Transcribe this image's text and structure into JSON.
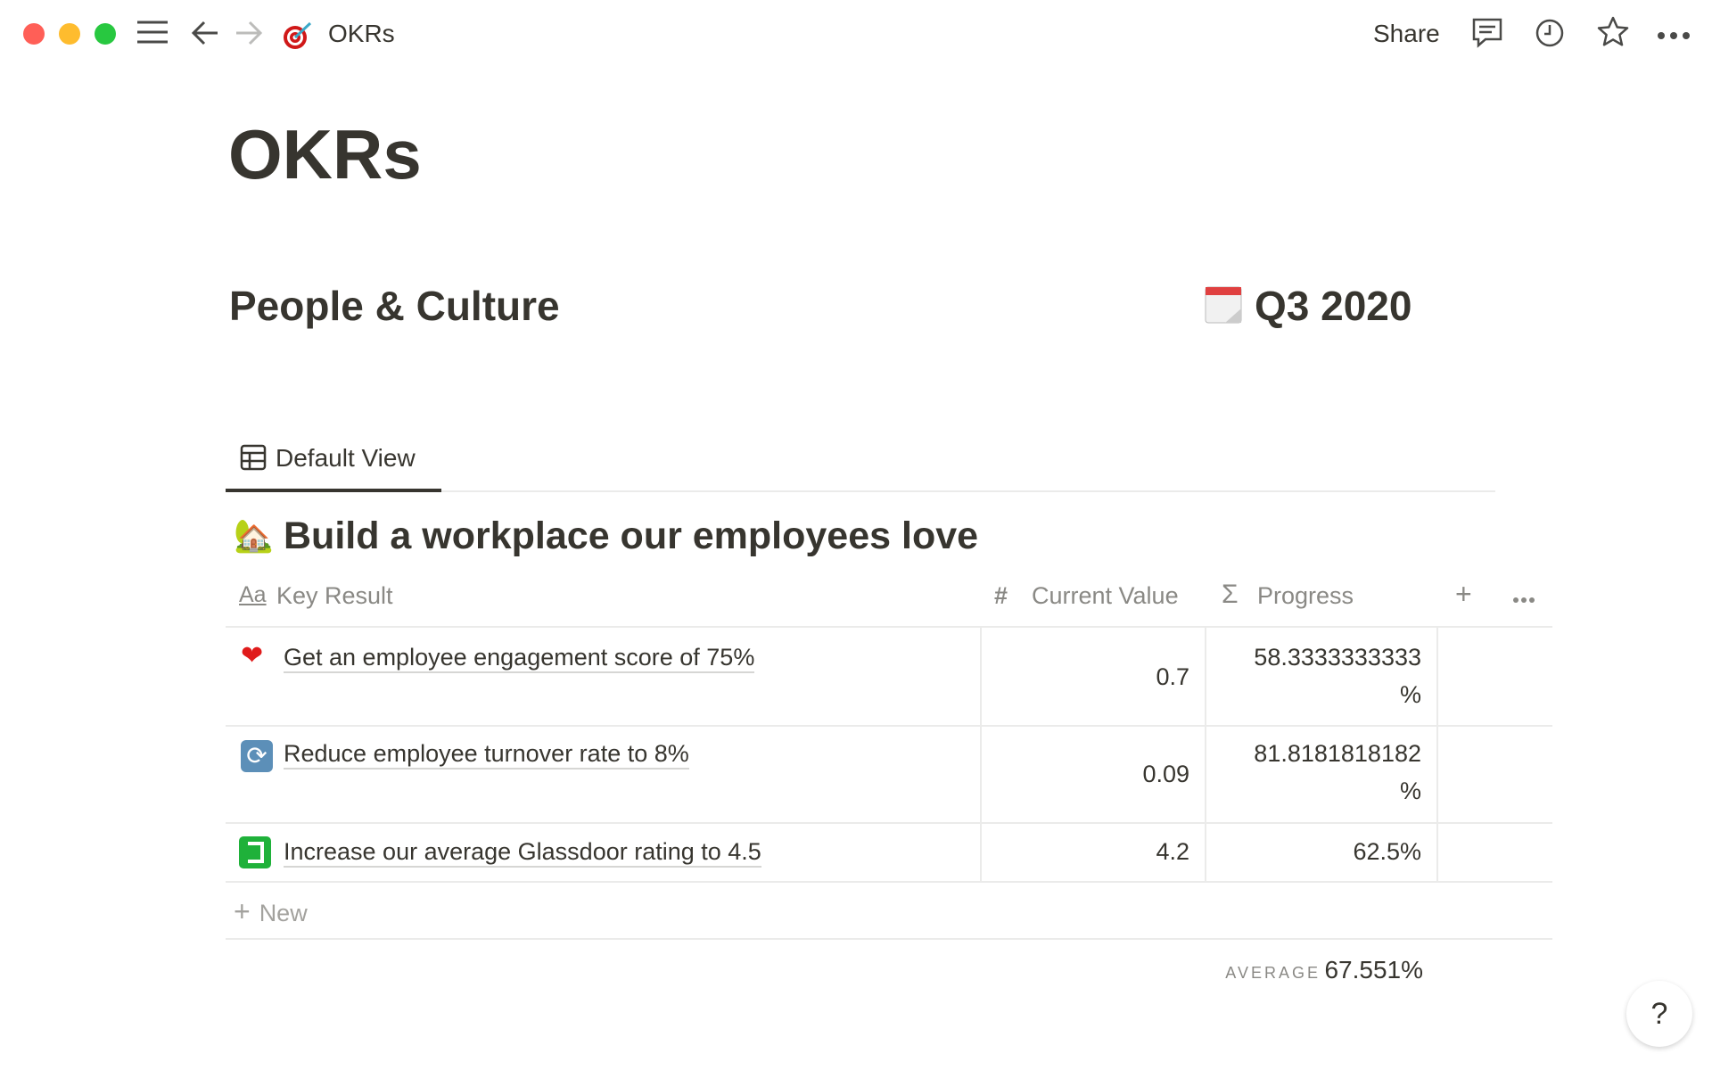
{
  "window": {
    "title": "OKRs",
    "share_label": "Share"
  },
  "page": {
    "title": "OKRs",
    "team": "People & Culture",
    "quarter": "Q3 2020"
  },
  "view": {
    "tab_label": "Default View"
  },
  "group": {
    "title": "Build a workplace our employees love"
  },
  "table": {
    "columns": [
      {
        "label": "Key Result",
        "icon": "Aa"
      },
      {
        "label": "Current Value",
        "icon": "#"
      },
      {
        "label": "Progress",
        "icon": "Σ"
      }
    ],
    "rows": [
      {
        "emoji": "❤️",
        "key_result": "Get an employee engagement score of 75%",
        "current_value": "0.7",
        "progress_line1": "58.3333333333",
        "progress_line2": "%"
      },
      {
        "emoji": "🔄",
        "key_result": "Reduce employee turnover rate to 8%",
        "current_value": "0.09",
        "progress_line1": "81.8181818182",
        "progress_line2": "%"
      },
      {
        "emoji": "glassdoor",
        "key_result": "Increase our average Glassdoor rating to 4.5",
        "current_value": "4.2",
        "progress_line1": "62.5%",
        "progress_line2": ""
      }
    ],
    "new_label": "New",
    "summary": {
      "label": "AVERAGE",
      "value": "67.551%"
    }
  },
  "help_label": "?",
  "colors": {
    "close": "#ff5f57",
    "minimize": "#febc2e",
    "zoom": "#28c840",
    "text": "#37352f",
    "muted": "#8a8985"
  }
}
